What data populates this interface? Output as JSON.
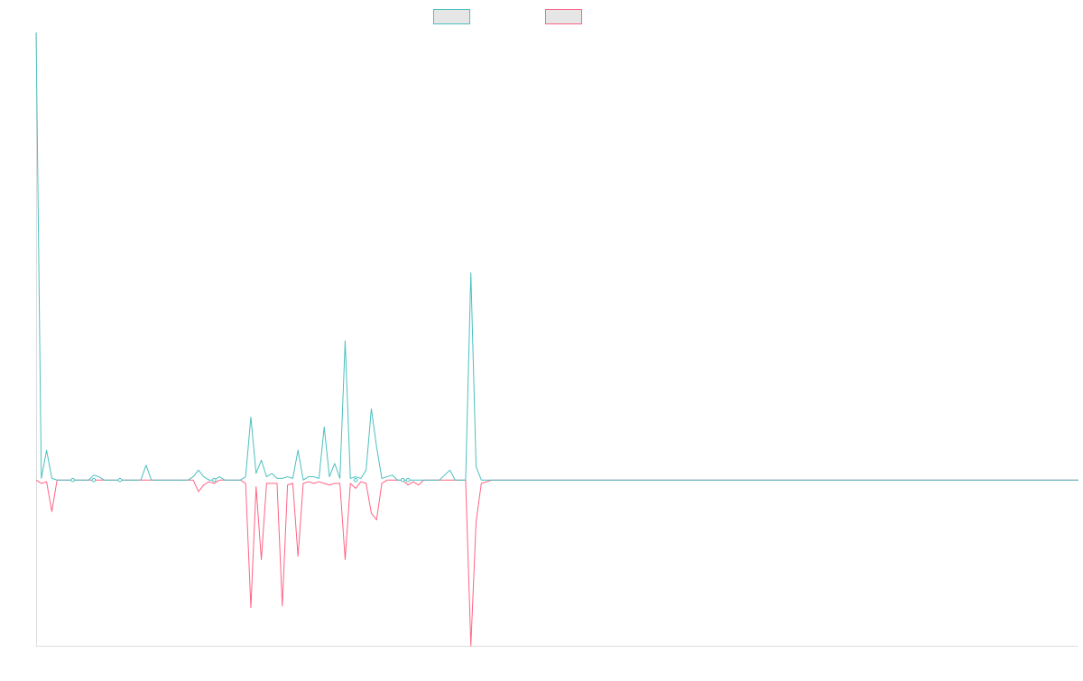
{
  "chart_data": {
    "type": "line",
    "title": "",
    "xlabel": "",
    "ylabel": "",
    "grid": false,
    "legend_position": "top-center",
    "ylim": [
      -100,
      270
    ],
    "n_points": 200,
    "series": [
      {
        "name": "",
        "color": "#4bc0c0",
        "swatch_fill": "#e6e6e6",
        "values": {
          "0": 270,
          "1": 1,
          "2": 18,
          "3": 1,
          "4": 0,
          "5": 0,
          "6": 0,
          "7": 0,
          "8": 0,
          "9": 0,
          "10": 0,
          "11": 3,
          "12": 2,
          "13": 0,
          "20": 0,
          "21": 9,
          "22": 0,
          "29": 0,
          "30": 2,
          "31": 6,
          "32": 2,
          "34": 0,
          "35": 2,
          "36": 0,
          "40": 2,
          "41": 38,
          "42": 4,
          "43": 12,
          "44": 2,
          "45": 4,
          "46": 1,
          "47": 1,
          "48": 2,
          "49": 1,
          "50": 18,
          "51": 0,
          "52": 2,
          "53": 2,
          "54": 1,
          "55": 32,
          "56": 2,
          "57": 10,
          "58": 1,
          "59": 84,
          "60": 1,
          "61": 2,
          "62": 1,
          "63": 6,
          "64": 43,
          "65": 20,
          "66": 1,
          "67": 2,
          "68": 3,
          "69": 0,
          "77": 0,
          "78": 3,
          "79": 6,
          "80": 0,
          "81": 0,
          "82": 0,
          "83": 125,
          "84": 8,
          "85": 0,
          "86": 0,
          "87": 0
        }
      },
      {
        "name": "",
        "color": "#ff6384",
        "swatch_fill": "#e6e6e6",
        "values": {
          "0": 0,
          "1": -2,
          "2": -1,
          "3": -19,
          "4": 0,
          "30": 0,
          "31": -7,
          "32": -3,
          "33": -1,
          "34": -2,
          "40": -2,
          "41": -77,
          "42": -4,
          "43": -48,
          "44": -2,
          "45": -2,
          "46": -2,
          "47": -76,
          "48": -3,
          "49": -2,
          "50": -46,
          "51": -2,
          "52": -1,
          "53": -2,
          "54": -1,
          "55": -2,
          "56": -3,
          "57": -2,
          "58": -2,
          "59": -48,
          "60": -2,
          "61": -5,
          "62": -1,
          "63": -2,
          "64": -20,
          "65": -24,
          "66": -2,
          "70": 0,
          "71": -3,
          "72": -1,
          "73": -3,
          "74": 0,
          "82": 0,
          "83": -100,
          "84": -25,
          "85": -2,
          "86": -1,
          "87": 0
        }
      }
    ],
    "markers": [
      {
        "series": 0,
        "x": 7,
        "y": 0
      },
      {
        "series": 0,
        "x": 11,
        "y": 0
      },
      {
        "series": 0,
        "x": 16,
        "y": 0
      },
      {
        "series": 0,
        "x": 34,
        "y": 0
      },
      {
        "series": 0,
        "x": 61,
        "y": 0
      },
      {
        "series": 0,
        "x": 70,
        "y": 0
      },
      {
        "series": 0,
        "x": 71,
        "y": 0
      }
    ]
  }
}
